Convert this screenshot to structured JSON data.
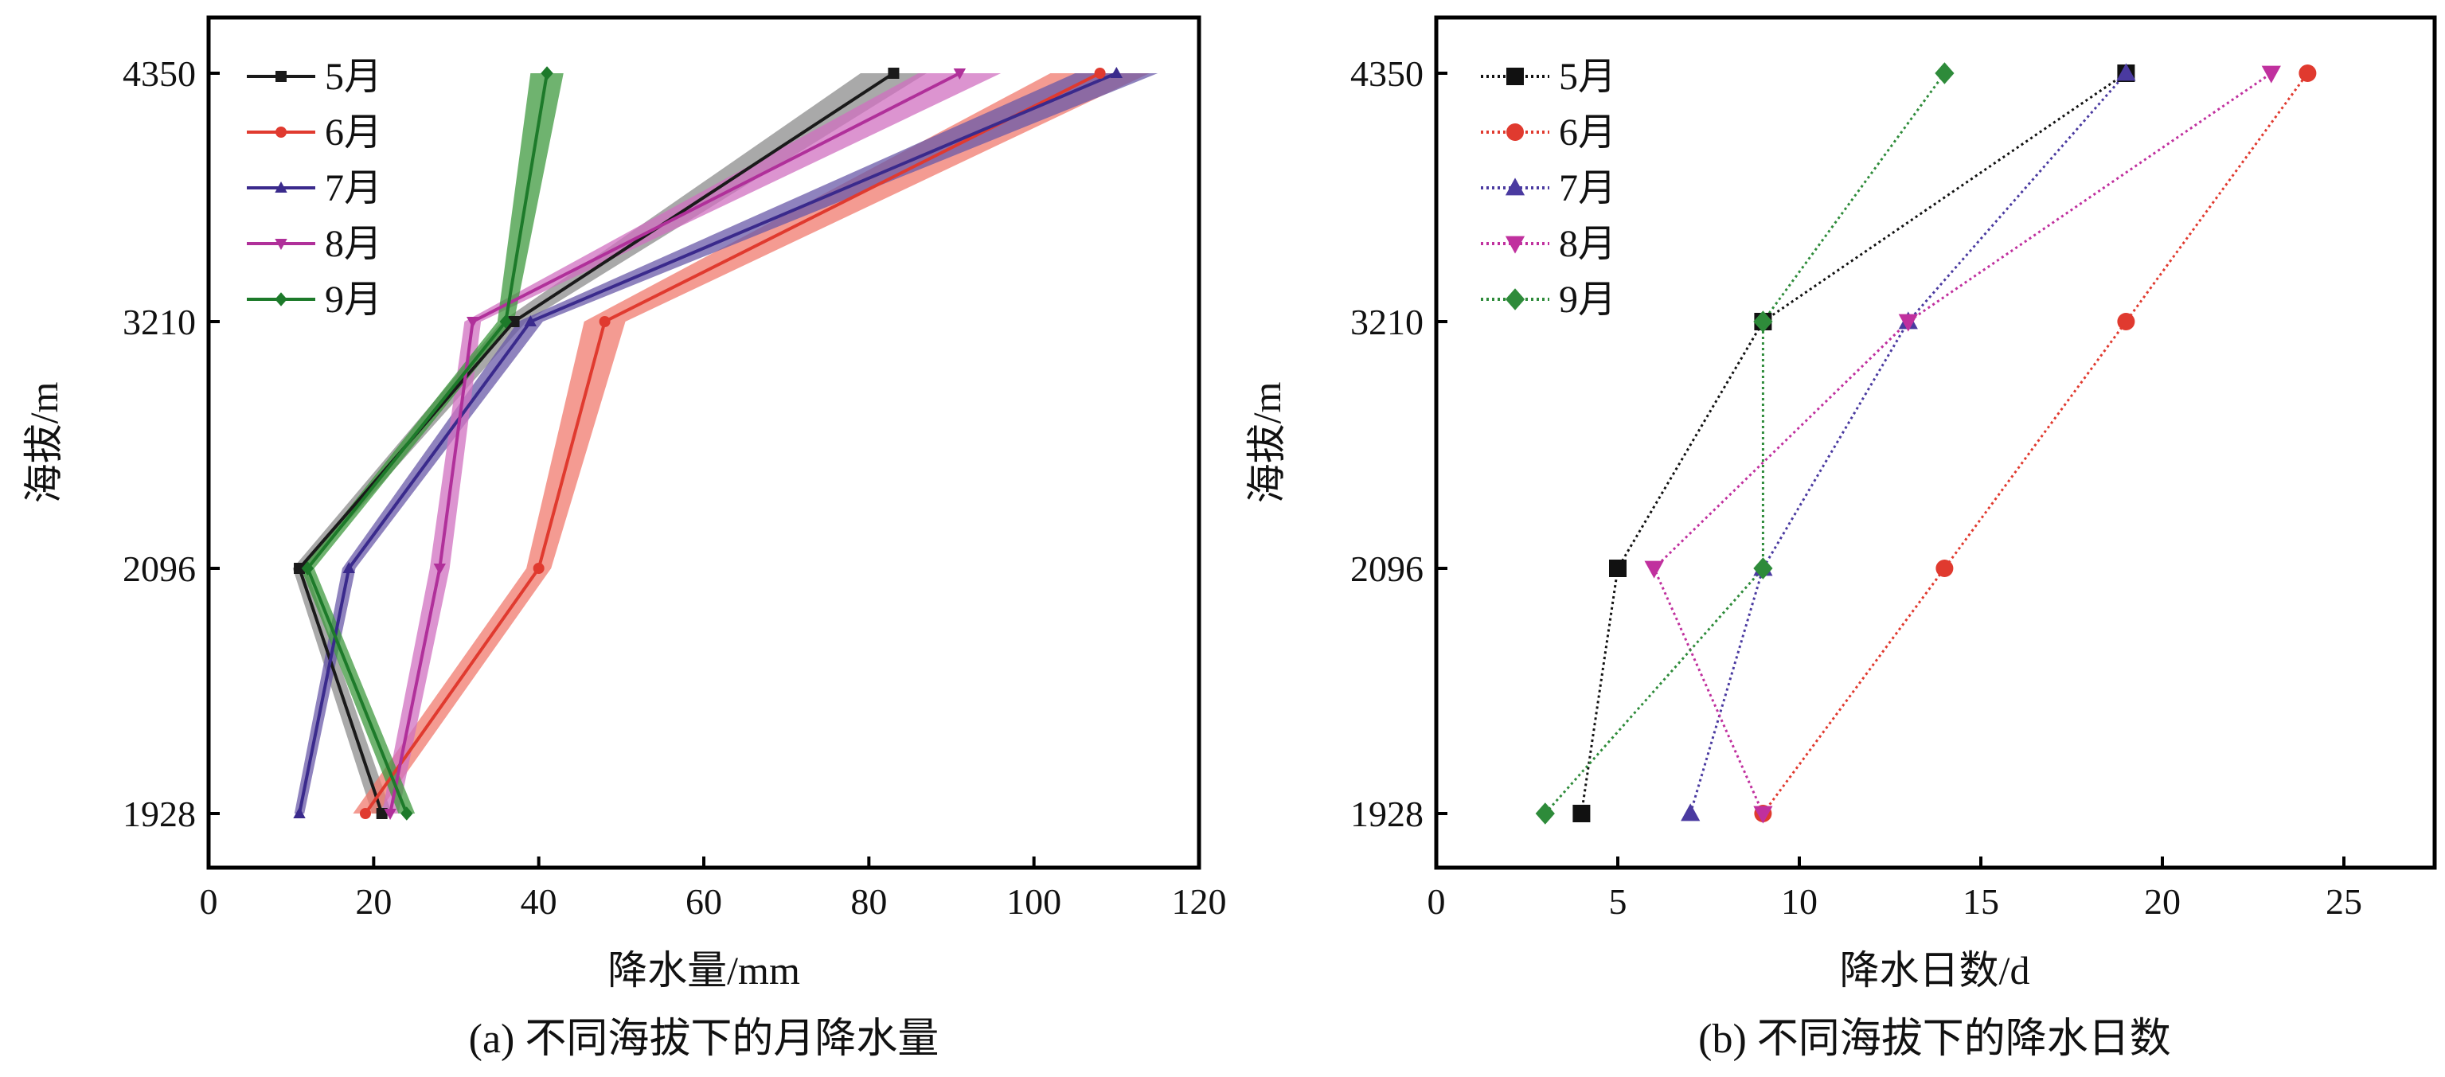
{
  "chart_data": [
    {
      "type": "line",
      "title": "",
      "caption": "(a) 不同海拔下的月降水量",
      "xlabel": "降水量/mm",
      "ylabel": "海拔/m",
      "xlim": [
        0,
        120
      ],
      "xticks": [
        0,
        20,
        40,
        60,
        80,
        100,
        120
      ],
      "y_categories": [
        "1928",
        "2096",
        "3210",
        "4350"
      ],
      "legend_position": "top-left",
      "band": "shaded range around each series",
      "series": [
        {
          "name": "5月",
          "color": "#1a1a1a",
          "band_color": "#8c8c8c",
          "marker": "square",
          "points": [
            [
              21,
              "1928"
            ],
            [
              11,
              "2096"
            ],
            [
              37,
              "3210"
            ],
            [
              83,
              "4350"
            ]
          ],
          "band_half_width": [
            1.2,
            0.8,
            1.5,
            4
          ]
        },
        {
          "name": "6月",
          "color": "#e03a2f",
          "band_color": "#f07a6e",
          "marker": "circle",
          "points": [
            [
              19,
              "1928"
            ],
            [
              40,
              "2096"
            ],
            [
              48,
              "3210"
            ],
            [
              108,
              "4350"
            ]
          ],
          "band_half_width": [
            1.5,
            1.5,
            2.5,
            6
          ]
        },
        {
          "name": "7月",
          "color": "#3a2a8c",
          "band_color": "#6a5aa8",
          "marker": "triangle-up",
          "points": [
            [
              11,
              "1928"
            ],
            [
              17,
              "2096"
            ],
            [
              39,
              "3210"
            ],
            [
              110,
              "4350"
            ]
          ],
          "band_half_width": [
            0.6,
            0.8,
            1.5,
            5
          ]
        },
        {
          "name": "8月",
          "color": "#b0309a",
          "band_color": "#d070c0",
          "marker": "triangle-down",
          "points": [
            [
              22,
              "1928"
            ],
            [
              28,
              "2096"
            ],
            [
              32,
              "3210"
            ],
            [
              91,
              "4350"
            ]
          ],
          "band_half_width": [
            1,
            1.2,
            1,
            5
          ]
        },
        {
          "name": "9月",
          "color": "#1d7a2a",
          "band_color": "#3f9a3f",
          "marker": "diamond",
          "points": [
            [
              24,
              "1928"
            ],
            [
              12,
              "2096"
            ],
            [
              36,
              "3210"
            ],
            [
              41,
              "4350"
            ]
          ],
          "band_half_width": [
            1,
            0.8,
            1,
            2
          ]
        }
      ]
    },
    {
      "type": "line",
      "title": "",
      "caption": "(b) 不同海拔下的降水日数",
      "xlabel": "降水日数/d",
      "ylabel": "海拔/m",
      "xlim": [
        0,
        27.5
      ],
      "xticks": [
        0,
        5,
        10,
        15,
        20,
        25
      ],
      "y_categories": [
        "1928",
        "2096",
        "3210",
        "4350"
      ],
      "legend_position": "top-left",
      "line_style": "dotted",
      "series": [
        {
          "name": "5月",
          "color": "#111111",
          "marker": "square",
          "points": [
            [
              4,
              "1928"
            ],
            [
              5,
              "2096"
            ],
            [
              9,
              "3210"
            ],
            [
              19,
              "4350"
            ]
          ]
        },
        {
          "name": "6月",
          "color": "#e03a2f",
          "marker": "circle",
          "points": [
            [
              9,
              "1928"
            ],
            [
              14,
              "2096"
            ],
            [
              19,
              "3210"
            ],
            [
              24,
              "4350"
            ]
          ]
        },
        {
          "name": "7月",
          "color": "#4a3aa0",
          "marker": "triangle-up",
          "points": [
            [
              7,
              "1928"
            ],
            [
              9,
              "2096"
            ],
            [
              13,
              "3210"
            ],
            [
              19,
              "4350"
            ]
          ]
        },
        {
          "name": "8月",
          "color": "#c0309e",
          "marker": "triangle-down",
          "points": [
            [
              9,
              "1928"
            ],
            [
              6,
              "2096"
            ],
            [
              13,
              "3210"
            ],
            [
              23,
              "4350"
            ]
          ]
        },
        {
          "name": "9月",
          "color": "#2e8b3a",
          "marker": "diamond",
          "points": [
            [
              3,
              "1928"
            ],
            [
              9,
              "2096"
            ],
            [
              9,
              "3210"
            ],
            [
              14,
              "4350"
            ]
          ]
        }
      ]
    }
  ]
}
